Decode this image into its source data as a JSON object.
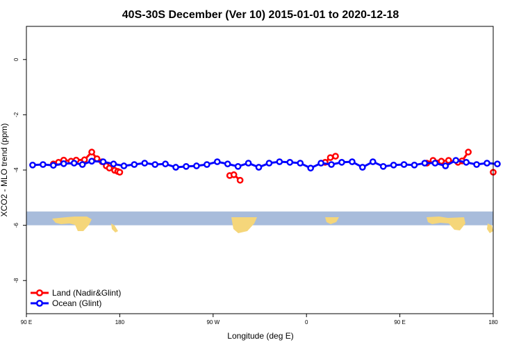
{
  "chart_data": {
    "type": "line",
    "title": "40S-30S December (Ver 10)   2015-01-01 to 2020-12-18",
    "xlabel": "Longitude (deg E)",
    "ylabel": "XCO2 - MLO trend (ppm)",
    "xlim": [
      90,
      450
    ],
    "ylim": [
      -9.2,
      1.2
    ],
    "x_ticks": [
      {
        "value": 90,
        "label": "90 E"
      },
      {
        "value": 180,
        "label": "180"
      },
      {
        "value": 270,
        "label": "90 W"
      },
      {
        "value": 360,
        "label": "0"
      },
      {
        "value": 450,
        "label": "90 E"
      },
      {
        "value": 540,
        "label": "180"
      }
    ],
    "y_ticks": [
      {
        "value": 0,
        "label": "0"
      },
      {
        "value": -2,
        "label": "-2"
      },
      {
        "value": -4,
        "label": "-4"
      },
      {
        "value": -6,
        "label": "-6"
      },
      {
        "value": -8,
        "label": "-8"
      }
    ],
    "map_strip": {
      "lat_range": "40S-30S",
      "y_top": -5.5,
      "y_bottom": -6.0,
      "ocean_color": "#A8BCDB",
      "land_color": "#F5D67A"
    },
    "legend_position": "bottom-left",
    "series": [
      {
        "name": "Land (Nadir&Glint)",
        "color": "#FF0000",
        "segments": [
          {
            "x": [
              116,
              121,
              126,
              133,
              138,
              146,
              153,
              158,
              163,
              167,
              170,
              175,
              178,
              180
            ],
            "y": [
              -3.78,
              -3.72,
              -3.64,
              -3.68,
              -3.64,
              -3.63,
              -3.35,
              -3.59,
              -3.7,
              -3.85,
              -3.93,
              -4.01,
              -4.05,
              -4.08
            ]
          },
          {
            "x": [
              286,
              290,
              296
            ],
            "y": [
              -4.2,
              -4.17,
              -4.37
            ]
          },
          {
            "x": [
              378,
              383,
              388
            ],
            "y": [
              -3.72,
              -3.55,
              -3.5
            ]
          },
          {
            "x": [
              476,
              482,
              490,
              497,
              506,
              510,
              516
            ],
            "y": [
              -3.75,
              -3.65,
              -3.68,
              -3.65,
              -3.72,
              -3.67,
              -3.35
            ]
          },
          {
            "x": [
              540
            ],
            "y": [
              -4.08
            ]
          }
        ]
      },
      {
        "name": "Ocean (Glint)",
        "color": "#0000FF",
        "segments": [
          {
            "x": [
              96,
              106,
              116,
              126,
              136,
              144,
              153,
              164,
              174,
              184,
              194,
              204,
              214,
              224,
              234,
              244,
              254,
              264,
              274,
              284,
              294,
              304,
              314,
              324,
              334,
              344,
              354,
              364,
              374,
              384,
              394,
              404,
              414,
              424,
              434,
              444,
              454,
              464,
              474,
              484,
              494,
              504,
              514,
              524,
              534,
              544
            ],
            "y": [
              -3.82,
              -3.8,
              -3.83,
              -3.77,
              -3.75,
              -3.8,
              -3.68,
              -3.7,
              -3.78,
              -3.85,
              -3.8,
              -3.75,
              -3.8,
              -3.78,
              -3.9,
              -3.87,
              -3.85,
              -3.8,
              -3.7,
              -3.78,
              -3.87,
              -3.75,
              -3.9,
              -3.75,
              -3.7,
              -3.72,
              -3.75,
              -3.93,
              -3.75,
              -3.8,
              -3.72,
              -3.7,
              -3.9,
              -3.7,
              -3.87,
              -3.82,
              -3.8,
              -3.82,
              -3.75,
              -3.75,
              -3.85,
              -3.65,
              -3.72,
              -3.8,
              -3.75,
              -3.78
            ]
          }
        ]
      }
    ]
  }
}
